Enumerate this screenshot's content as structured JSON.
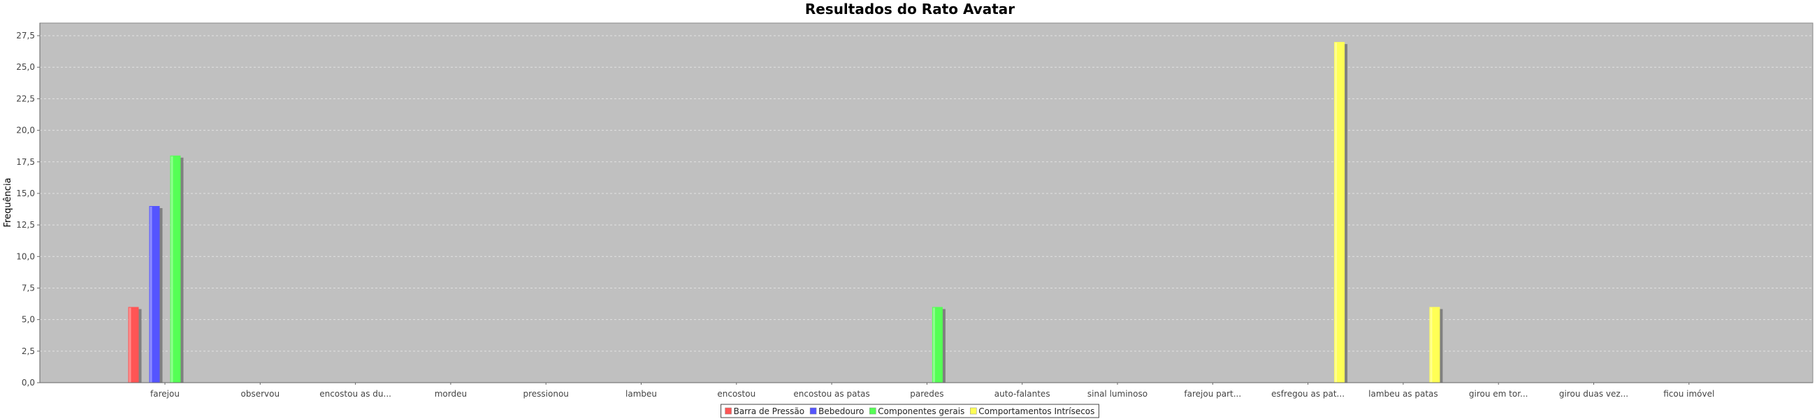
{
  "chart_data": {
    "type": "bar",
    "title": "Resultados do Rato Avatar",
    "xlabel": "",
    "ylabel": "Frequência",
    "ylim": [
      0,
      28.5
    ],
    "yticks": [
      "0,0",
      "2,5",
      "5,0",
      "7,5",
      "10,0",
      "12,5",
      "15,0",
      "17,5",
      "20,0",
      "22,5",
      "25,0",
      "27,5"
    ],
    "ytick_values": [
      0,
      2.5,
      5,
      7.5,
      10,
      12.5,
      15,
      17.5,
      20,
      22.5,
      25,
      27.5
    ],
    "grid": true,
    "legend_position": "bottom-center",
    "categories": [
      "farejou",
      "observou",
      "encostou as du...",
      "mordeu",
      "pressionou",
      "lambeu",
      "encostou",
      "encostou as patas",
      "paredes",
      "auto-falantes",
      "sinal luminoso",
      "farejou part...",
      "esfregou as pat...",
      "lambeu as patas",
      "girou em tor...",
      "girou duas vez...",
      "ficou imóvel"
    ],
    "series": [
      {
        "name": "Barra de Pressão",
        "color": "#ff5555",
        "values": [
          6,
          0,
          0,
          0,
          0,
          0,
          0,
          0,
          0,
          0,
          0,
          0,
          0,
          0,
          0,
          0,
          0
        ]
      },
      {
        "name": "Bebedouro",
        "color": "#5555ff",
        "values": [
          14,
          0,
          0,
          0,
          0,
          0,
          0,
          0,
          0,
          0,
          0,
          0,
          0,
          0,
          0,
          0,
          0
        ]
      },
      {
        "name": "Componentes gerais",
        "color": "#55ff55",
        "values": [
          18,
          0,
          0,
          0,
          0,
          0,
          0,
          0,
          6,
          0,
          0,
          0,
          0,
          0,
          0,
          0,
          0
        ]
      },
      {
        "name": "Comportamentos Intrísecos",
        "color": "#ffff55",
        "values": [
          0,
          0,
          0,
          0,
          0,
          0,
          0,
          0,
          0,
          0,
          0,
          0,
          27,
          6,
          0,
          0,
          0
        ]
      }
    ]
  }
}
